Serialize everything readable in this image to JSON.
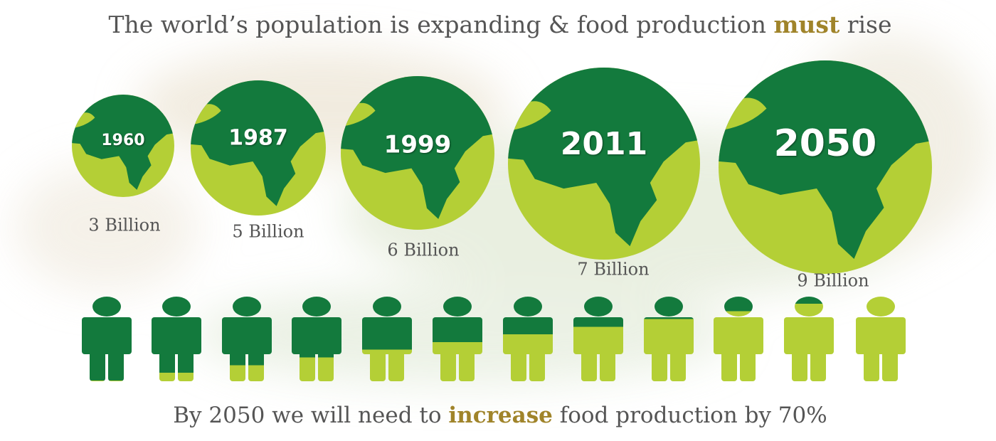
{
  "title": {
    "before": "The world’s population is expanding & food production ",
    "emphasis": "must",
    "after": " rise"
  },
  "globes": [
    {
      "year": "1960",
      "population": "3 Billion"
    },
    {
      "year": "1987",
      "population": "5 Billion"
    },
    {
      "year": "1999",
      "population": "6 Billion"
    },
    {
      "year": "2011",
      "population": "7 Billion"
    },
    {
      "year": "2050",
      "population": "9 Billion"
    }
  ],
  "footer": {
    "before": "By 2050 we will need to ",
    "emphasis": "increase",
    "after": " food production by 70%"
  }
}
